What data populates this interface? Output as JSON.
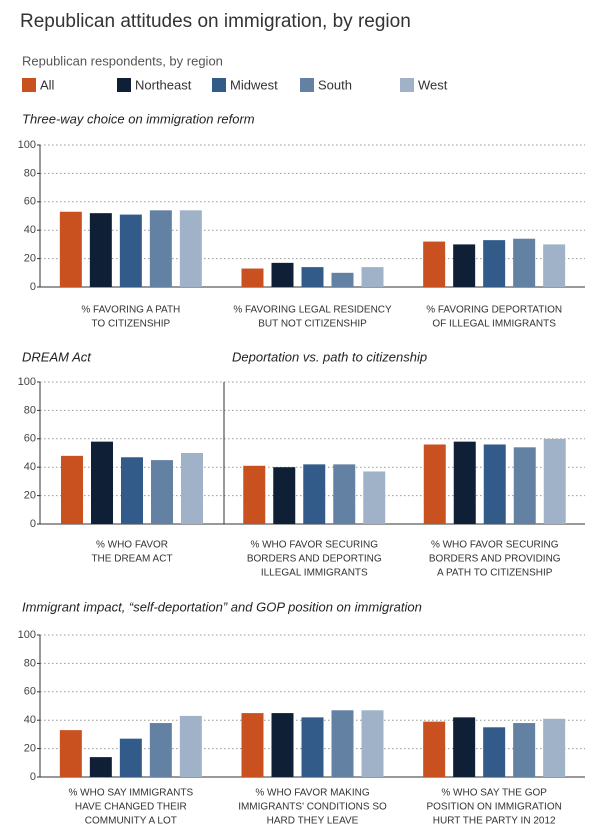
{
  "title": "Republican attitudes on immigration, by region",
  "subtitle": "Republican respondents, by region",
  "chart_data": [
    {
      "type": "bar",
      "title": "Three-way choice on immigration reform",
      "categories": [
        [
          "% FAVORING A PATH",
          "TO CITIZENSHIP"
        ],
        [
          "% FAVORING LEGAL RESIDENCY",
          "BUT NOT CITIZENSHIP"
        ],
        [
          "% FAVORING DEPORTATION",
          "OF ILLEGAL IMMIGRANTS"
        ]
      ],
      "series": [
        {
          "name": "All",
          "color": "#c9511f",
          "values": [
            53,
            13,
            32
          ]
        },
        {
          "name": "Northeast",
          "color": "#0f1f36",
          "values": [
            52,
            17,
            30
          ]
        },
        {
          "name": "Midwest",
          "color": "#335b8a",
          "values": [
            51,
            14,
            33
          ]
        },
        {
          "name": "South",
          "color": "#6382a3",
          "values": [
            54,
            10,
            34
          ]
        },
        {
          "name": "West",
          "color": "#9fb2c8",
          "values": [
            54,
            14,
            30
          ]
        }
      ],
      "ylim": [
        0,
        100
      ],
      "yticks": [
        0,
        20,
        40,
        60,
        80,
        100
      ],
      "grid": true
    },
    {
      "type": "bar",
      "title": "DREAM Act",
      "categories": [
        [
          "% WHO FAVOR",
          "THE DREAM ACT"
        ]
      ],
      "series": [
        {
          "color": "#c9511f",
          "values": [
            48
          ]
        },
        {
          "color": "#0f1f36",
          "values": [
            58
          ]
        },
        {
          "color": "#335b8a",
          "values": [
            47
          ]
        },
        {
          "color": "#6382a3",
          "values": [
            45
          ]
        },
        {
          "color": "#9fb2c8",
          "values": [
            50
          ]
        }
      ],
      "ylim": [
        0,
        100
      ],
      "yticks": [
        0,
        20,
        40,
        60,
        80,
        100
      ],
      "grid": true
    },
    {
      "type": "bar",
      "title": "Deportation vs. path to citizenship",
      "categories": [
        [
          "% WHO FAVOR SECURING",
          "BORDERS AND DEPORTING",
          "ILLEGAL IMMIGRANTS"
        ],
        [
          "% WHO FAVOR SECURING",
          "BORDERS AND PROVIDING",
          "A PATH TO CITIZENSHIP"
        ]
      ],
      "series": [
        {
          "color": "#c9511f",
          "values": [
            41,
            56
          ]
        },
        {
          "color": "#0f1f36",
          "values": [
            40,
            58
          ]
        },
        {
          "color": "#335b8a",
          "values": [
            42,
            56
          ]
        },
        {
          "color": "#6382a3",
          "values": [
            42,
            54
          ]
        },
        {
          "color": "#9fb2c8",
          "values": [
            37,
            60
          ]
        }
      ],
      "ylim": [
        0,
        100
      ]
    },
    {
      "type": "bar",
      "title": "Immigrant impact, “self-deportation” and GOP position on immigration",
      "categories": [
        [
          "% WHO SAY IMMIGRANTS",
          "HAVE CHANGED THEIR",
          "COMMUNITY A LOT"
        ],
        [
          "% WHO FAVOR MAKING",
          "IMMIGRANTS' CONDITIONS SO",
          "HARD THEY LEAVE"
        ],
        [
          "% WHO SAY THE GOP",
          "POSITION ON IMMIGRATION",
          "HURT THE PARTY IN 2012"
        ]
      ],
      "series": [
        {
          "color": "#c9511f",
          "values": [
            33,
            45,
            39
          ]
        },
        {
          "color": "#0f1f36",
          "values": [
            14,
            45,
            42
          ]
        },
        {
          "color": "#335b8a",
          "values": [
            27,
            42,
            35
          ]
        },
        {
          "color": "#6382a3",
          "values": [
            38,
            47,
            38
          ]
        },
        {
          "color": "#9fb2c8",
          "values": [
            43,
            47,
            41
          ]
        }
      ],
      "ylim": [
        0,
        100
      ],
      "yticks": [
        0,
        20,
        40,
        60,
        80,
        100
      ],
      "grid": true
    }
  ]
}
